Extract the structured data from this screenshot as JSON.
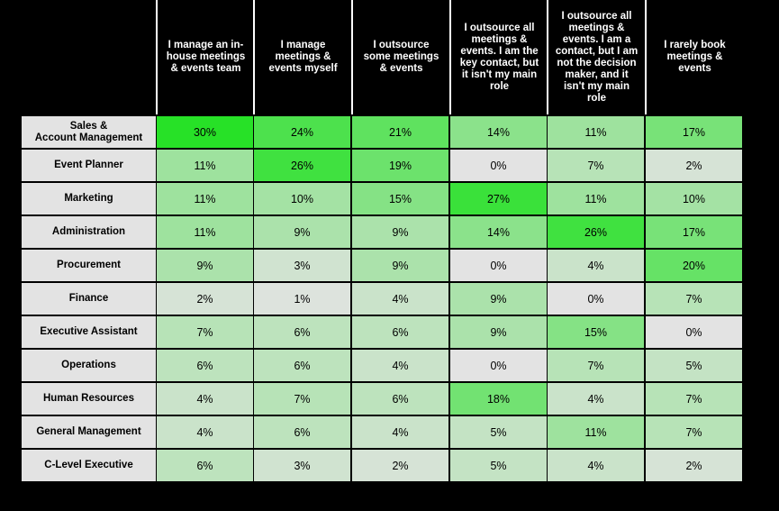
{
  "chart_data": {
    "type": "heatmap",
    "columns": [
      "I manage an in-house meetings & events team",
      "I manage meetings & events myself",
      "I outsource some meetings & events",
      "I outsource all meetings & events. I am the key contact, but it isn't my main role",
      "I outsource all meetings & events. I am a contact, but I am not the decision maker, and it isn't my main role",
      "I rarely book meetings & events"
    ],
    "rows": [
      {
        "label": "Sales &\nAccount Management",
        "values": [
          30,
          24,
          21,
          14,
          11,
          17
        ],
        "labels": [
          "30%",
          "24%",
          "21%",
          "14%",
          "11%",
          "17%"
        ]
      },
      {
        "label": "Event Planner",
        "values": [
          11,
          26,
          19,
          0,
          7,
          2
        ],
        "labels": [
          "11%",
          "26%",
          "19%",
          "0%",
          "7%",
          "2%"
        ]
      },
      {
        "label": "Marketing",
        "values": [
          11,
          10,
          15,
          27,
          11,
          10
        ],
        "labels": [
          "11%",
          "10%",
          "15%",
          "27%",
          "11%",
          "10%"
        ]
      },
      {
        "label": "Administration",
        "values": [
          11,
          9,
          9,
          14,
          26,
          17
        ],
        "labels": [
          "11%",
          "9%",
          "9%",
          "14%",
          "26%",
          "17%"
        ]
      },
      {
        "label": "Procurement",
        "values": [
          9,
          3,
          9,
          0,
          4,
          20
        ],
        "labels": [
          "9%",
          "3%",
          "9%",
          "0%",
          "4%",
          "20%"
        ]
      },
      {
        "label": "Finance",
        "values": [
          2,
          1,
          4,
          9,
          0,
          7
        ],
        "labels": [
          "2%",
          "1%",
          "4%",
          "9%",
          "0%",
          "7%"
        ]
      },
      {
        "label": "Executive Assistant",
        "values": [
          7,
          6,
          6,
          9,
          15,
          0
        ],
        "labels": [
          "7%",
          "6%",
          "6%",
          "9%",
          "15%",
          "0%"
        ]
      },
      {
        "label": "Operations",
        "values": [
          6,
          6,
          4,
          0,
          7,
          5
        ],
        "labels": [
          "6%",
          "6%",
          "4%",
          "0%",
          "7%",
          "5%"
        ]
      },
      {
        "label": "Human Resources",
        "values": [
          4,
          7,
          6,
          18,
          4,
          7
        ],
        "labels": [
          "4%",
          "7%",
          "6%",
          "18%",
          "4%",
          "7%"
        ]
      },
      {
        "label": "General Management",
        "values": [
          4,
          6,
          4,
          5,
          11,
          7
        ],
        "labels": [
          "4%",
          "6%",
          "4%",
          "5%",
          "11%",
          "7%"
        ]
      },
      {
        "label": "C-Level Executive",
        "values": [
          6,
          3,
          2,
          5,
          4,
          2
        ],
        "labels": [
          "6%",
          "3%",
          "2%",
          "5%",
          "4%",
          "2%"
        ]
      }
    ],
    "colors": {
      "low": "#e3e3e3",
      "high": "#27e127",
      "label_bg": "#e3e3e3",
      "background": "#000000",
      "gridline": "#ffffff"
    }
  }
}
